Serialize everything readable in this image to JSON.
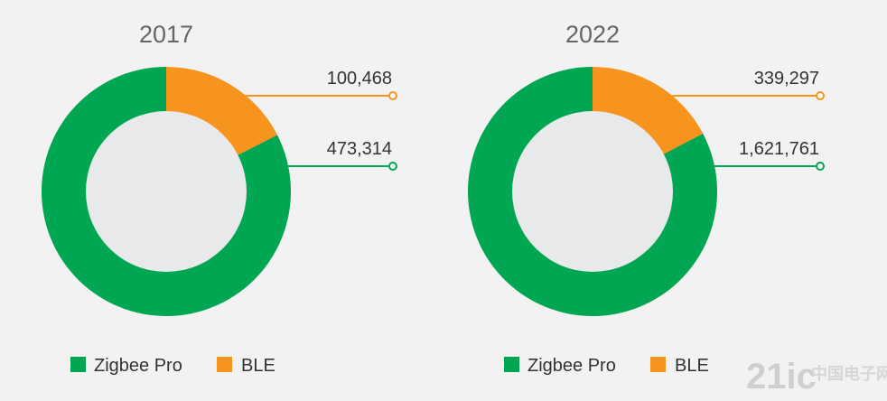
{
  "chart_data": [
    {
      "type": "pie",
      "title": "2017",
      "categories": [
        "Zigbee Pro",
        "BLE"
      ],
      "values": [
        473314,
        100468
      ],
      "colors": [
        "#00a651",
        "#f7941d"
      ],
      "legend_position": "bottom"
    },
    {
      "type": "pie",
      "title": "2022",
      "categories": [
        "Zigbee Pro",
        "BLE"
      ],
      "values": [
        1621761,
        339297
      ],
      "colors": [
        "#00a651",
        "#f7941d"
      ],
      "legend_position": "bottom"
    }
  ],
  "value_labels": [
    {
      "zigbee": "473,314",
      "ble": "100,468"
    },
    {
      "zigbee": "1,621,761",
      "ble": "339,297"
    }
  ],
  "legend": {
    "zigbee": "Zigbee Pro",
    "ble": "BLE"
  },
  "watermark": {
    "text": "21ic",
    "sub": "中国电子网"
  },
  "inner_color": "#e8e9ea"
}
